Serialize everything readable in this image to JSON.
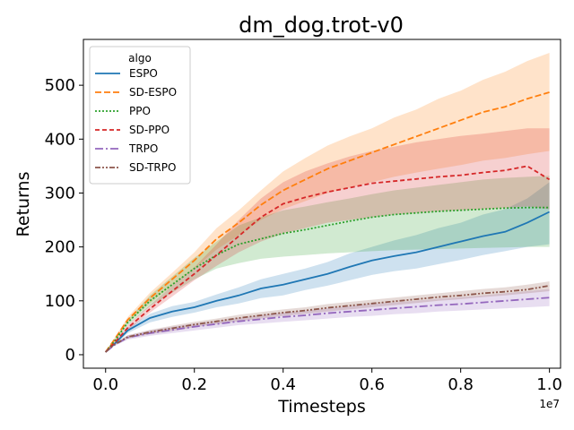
{
  "chart_data": {
    "type": "line",
    "title": "dm_dog.trot-v0",
    "xlabel": "Timesteps",
    "ylabel": "Returns",
    "x_offset_label": "1e7",
    "xlim": [
      -0.05,
      1.025
    ],
    "ylim": [
      -25,
      585
    ],
    "xticks": [
      0.0,
      0.2,
      0.4,
      0.6,
      0.8,
      1.0
    ],
    "xtick_labels": [
      "0.0",
      "0.2",
      "0.4",
      "0.6",
      "0.8",
      "1.0"
    ],
    "yticks": [
      0,
      100,
      200,
      300,
      400,
      500
    ],
    "ytick_labels": [
      "0",
      "100",
      "200",
      "300",
      "400",
      "500"
    ],
    "grid": false,
    "legend": {
      "title": "algo",
      "placement": "top-left"
    },
    "x": [
      0.0,
      0.02,
      0.05,
      0.1,
      0.15,
      0.2,
      0.25,
      0.3,
      0.35,
      0.4,
      0.45,
      0.5,
      0.55,
      0.6,
      0.65,
      0.7,
      0.75,
      0.8,
      0.85,
      0.9,
      0.95,
      1.0
    ],
    "series": [
      {
        "name": "ESPO",
        "color": "#1f77b4",
        "dash": "",
        "values": [
          5,
          20,
          45,
          68,
          80,
          88,
          100,
          110,
          123,
          130,
          140,
          150,
          163,
          175,
          183,
          190,
          200,
          210,
          220,
          228,
          245,
          265
        ],
        "lower": [
          5,
          18,
          40,
          60,
          70,
          78,
          88,
          95,
          105,
          110,
          120,
          128,
          138,
          148,
          155,
          160,
          168,
          176,
          185,
          192,
          200,
          205
        ],
        "upper": [
          5,
          22,
          50,
          76,
          90,
          98,
          112,
          125,
          140,
          150,
          160,
          172,
          188,
          200,
          212,
          222,
          235,
          245,
          260,
          270,
          290,
          320
        ]
      },
      {
        "name": "SD-ESPO",
        "color": "#ff7f0e",
        "dash": "7,3",
        "values": [
          5,
          28,
          65,
          105,
          140,
          175,
          215,
          245,
          278,
          305,
          325,
          345,
          360,
          375,
          390,
          405,
          420,
          435,
          450,
          460,
          475,
          487
        ],
        "lower": [
          5,
          25,
          60,
          95,
          128,
          160,
          195,
          222,
          250,
          270,
          285,
          300,
          310,
          320,
          330,
          338,
          345,
          352,
          360,
          365,
          372,
          378
        ],
        "upper": [
          5,
          31,
          70,
          115,
          152,
          190,
          235,
          268,
          305,
          340,
          365,
          388,
          405,
          420,
          440,
          455,
          475,
          490,
          510,
          525,
          545,
          560
        ]
      },
      {
        "name": "PPO",
        "color": "#2ca02c",
        "dash": "2,2",
        "values": [
          5,
          25,
          60,
          100,
          130,
          160,
          185,
          205,
          215,
          225,
          232,
          240,
          248,
          255,
          260,
          263,
          266,
          268,
          270,
          272,
          273,
          273
        ],
        "lower": [
          5,
          23,
          55,
          90,
          115,
          140,
          160,
          170,
          178,
          182,
          185,
          188,
          190,
          192,
          194,
          195,
          196,
          197,
          198,
          199,
          200,
          200
        ],
        "upper": [
          5,
          27,
          65,
          110,
          145,
          180,
          210,
          240,
          255,
          268,
          275,
          283,
          290,
          298,
          305,
          310,
          315,
          320,
          325,
          328,
          330,
          332
        ]
      },
      {
        "name": "SD-PPO",
        "color": "#d62728",
        "dash": "5,3",
        "values": [
          5,
          22,
          50,
          85,
          118,
          150,
          185,
          220,
          255,
          280,
          292,
          302,
          310,
          318,
          322,
          326,
          330,
          333,
          338,
          342,
          350,
          325
        ],
        "lower": [
          5,
          20,
          45,
          78,
          108,
          138,
          165,
          190,
          210,
          225,
          235,
          245,
          250,
          255,
          260,
          263,
          266,
          268,
          270,
          272,
          275,
          270
        ],
        "upper": [
          5,
          24,
          55,
          92,
          128,
          162,
          205,
          250,
          290,
          320,
          340,
          355,
          368,
          378,
          386,
          394,
          400,
          406,
          410,
          415,
          420,
          420
        ]
      },
      {
        "name": "TRPO",
        "color": "#9467bd",
        "dash": "9,3,2,3",
        "values": [
          5,
          18,
          32,
          40,
          46,
          52,
          57,
          62,
          66,
          70,
          73,
          77,
          80,
          83,
          86,
          89,
          92,
          94,
          97,
          100,
          103,
          106
        ],
        "lower": [
          5,
          16,
          28,
          35,
          40,
          45,
          50,
          55,
          58,
          61,
          64,
          67,
          70,
          72,
          75,
          77,
          80,
          82,
          84,
          86,
          88,
          90
        ],
        "upper": [
          5,
          20,
          36,
          45,
          52,
          58,
          63,
          68,
          73,
          78,
          82,
          86,
          90,
          94,
          97,
          100,
          104,
          107,
          110,
          114,
          118,
          122
        ]
      },
      {
        "name": "SD-TRPO",
        "color": "#8c564b",
        "dash": "6,2,2,2,2,2",
        "values": [
          5,
          19,
          33,
          42,
          49,
          56,
          62,
          68,
          73,
          78,
          82,
          87,
          91,
          95,
          99,
          103,
          107,
          110,
          114,
          117,
          121,
          128
        ],
        "lower": [
          5,
          17,
          30,
          38,
          44,
          51,
          57,
          62,
          67,
          72,
          76,
          80,
          84,
          88,
          92,
          96,
          100,
          103,
          107,
          110,
          114,
          118
        ],
        "upper": [
          5,
          21,
          36,
          46,
          54,
          61,
          67,
          74,
          79,
          84,
          88,
          94,
          98,
          102,
          106,
          110,
          114,
          118,
          122,
          125,
          130,
          136
        ]
      }
    ]
  }
}
